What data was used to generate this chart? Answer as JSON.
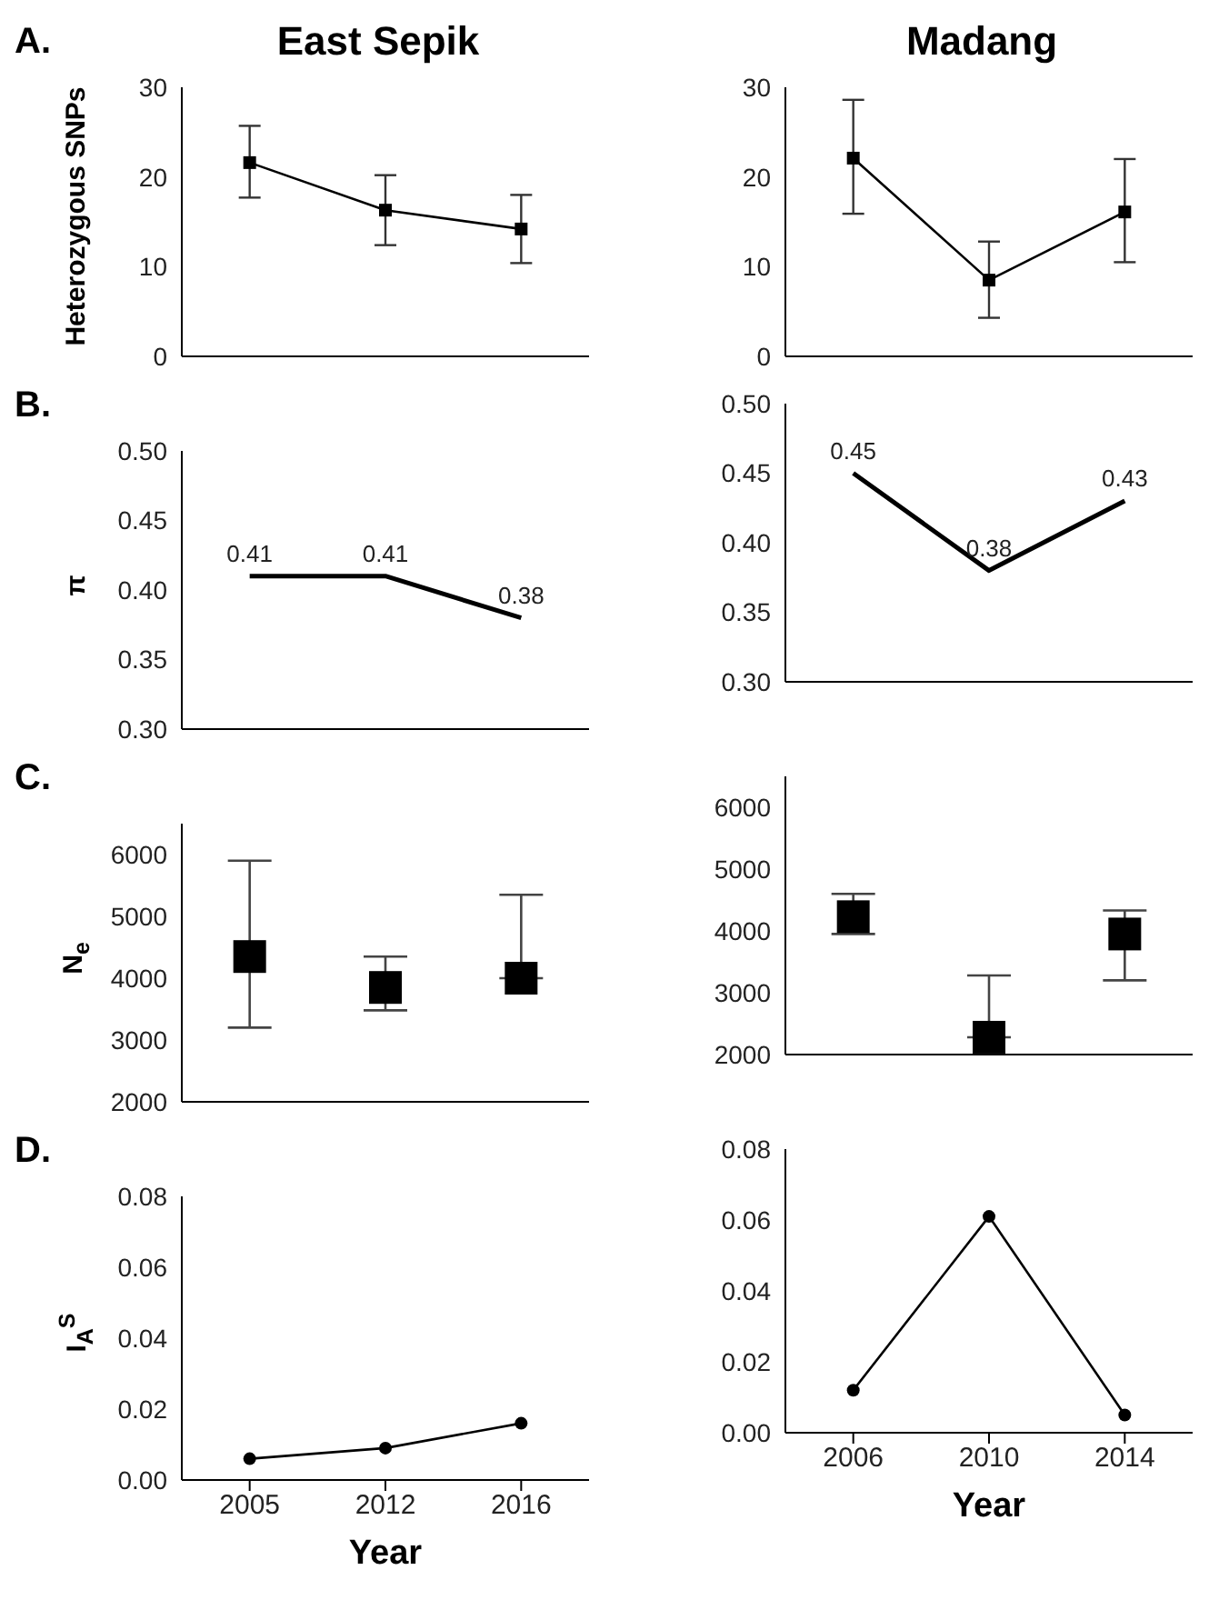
{
  "chart_data": [
    {
      "type": "line",
      "title": "East Sepik",
      "ylabel": "Heterozygous SNPs",
      "annotations": [
        "A."
      ],
      "categories": [
        null,
        null,
        null
      ],
      "ylim": [
        0,
        30
      ],
      "yticks": [
        0,
        10,
        20,
        30
      ],
      "tick_labels": "y",
      "marker": "square",
      "line_style": "solid",
      "series": [
        {
          "color": "#000000",
          "values": [
            21.6,
            16.3,
            14.2
          ],
          "errors": [
            [
              17.7,
              25.7
            ],
            [
              12.4,
              20.2
            ],
            [
              10.4,
              18.0
            ]
          ]
        }
      ]
    },
    {
      "type": "line",
      "title": "Madang",
      "categories": [
        null,
        null,
        null
      ],
      "ylim": [
        0,
        30
      ],
      "yticks": [
        0,
        10,
        20,
        30
      ],
      "tick_labels": "y",
      "marker": "square",
      "line_style": "solid",
      "series": [
        {
          "color": "#000000",
          "values": [
            22.1,
            8.5,
            16.1
          ],
          "errors": [
            [
              15.9,
              28.6
            ],
            [
              4.3,
              12.8
            ],
            [
              10.5,
              22.0
            ]
          ]
        }
      ]
    },
    {
      "type": "line",
      "ylabel": "π",
      "annotations": [
        "B."
      ],
      "categories": [
        null,
        null,
        null
      ],
      "ylim": [
        0.3,
        0.5
      ],
      "yticks": [
        {
          "value": 0.3,
          "label": "0.30"
        },
        {
          "value": 0.35,
          "label": "0.35"
        },
        {
          "value": 0.4,
          "label": "0.40"
        },
        {
          "value": 0.45,
          "label": "0.45"
        },
        {
          "value": 0.5,
          "label": "0.50"
        }
      ],
      "tick_labels": "y",
      "marker": "none",
      "line_style": "solid",
      "data_labels": true,
      "series": [
        {
          "color": "#000000",
          "values": [
            0.41,
            0.41,
            0.38
          ]
        }
      ]
    },
    {
      "type": "line",
      "categories": [
        null,
        null,
        null
      ],
      "ylim": [
        0.3,
        0.5
      ],
      "yticks": [
        {
          "value": 0.3,
          "label": "0.30"
        },
        {
          "value": 0.35,
          "label": "0.35"
        },
        {
          "value": 0.4,
          "label": "0.40"
        },
        {
          "value": 0.45,
          "label": "0.45"
        },
        {
          "value": 0.5,
          "label": "0.50"
        }
      ],
      "tick_labels": "y",
      "marker": "none",
      "line_style": "solid",
      "data_labels": true,
      "series": [
        {
          "color": "#000000",
          "values": [
            0.45,
            0.38,
            0.43
          ]
        }
      ]
    },
    {
      "type": "scatter",
      "ylabel": "N$_{e}$",
      "annotations": [
        "C."
      ],
      "categories": [
        null,
        null,
        null
      ],
      "ylim": [
        2000,
        6500
      ],
      "yticks": [
        2000,
        3000,
        4000,
        5000,
        6000
      ],
      "tick_labels": "y",
      "marker": "square",
      "series": [
        {
          "color": "#000000",
          "values": [
            4350,
            3850,
            4000
          ],
          "errors": [
            [
              3200,
              5900
            ],
            [
              3480,
              4350
            ],
            [
              4000,
              5350
            ]
          ]
        }
      ]
    },
    {
      "type": "scatter",
      "categories": [
        null,
        null,
        null
      ],
      "ylim": [
        2000,
        6500
      ],
      "yticks": [
        2000,
        3000,
        4000,
        5000,
        6000
      ],
      "tick_labels": "y",
      "marker": "square",
      "series": [
        {
          "color": "#000000",
          "values": [
            4230,
            2280,
            3950
          ],
          "errors": [
            [
              3950,
              4600
            ],
            [
              2280,
              3280
            ],
            [
              3200,
              4330
            ]
          ]
        }
      ]
    },
    {
      "type": "line",
      "ylabel": "I$_{A}$$^{S}$",
      "xlabel": "Year",
      "annotations": [
        "D."
      ],
      "categories": [
        "2005",
        "2012",
        "2016"
      ],
      "ylim": [
        0,
        0.08
      ],
      "yticks": [
        {
          "value": 0,
          "label": "0.00"
        },
        {
          "value": 0.02,
          "label": "0.02"
        },
        {
          "value": 0.04,
          "label": "0.04"
        },
        {
          "value": 0.06,
          "label": "0.06"
        },
        {
          "value": 0.08,
          "label": "0.08"
        }
      ],
      "marker": "circle",
      "line_style": "solid",
      "series": [
        {
          "color": "#000000",
          "values": [
            0.006,
            0.009,
            0.016
          ]
        }
      ]
    },
    {
      "type": "line",
      "xlabel": "Year",
      "categories": [
        "2006",
        "2010",
        "2014"
      ],
      "ylim": [
        0,
        0.08
      ],
      "yticks": [
        {
          "value": 0,
          "label": "0.00"
        },
        {
          "value": 0.02,
          "label": "0.02"
        },
        {
          "value": 0.04,
          "label": "0.04"
        },
        {
          "value": 0.06,
          "label": "0.06"
        },
        {
          "value": 0.08,
          "label": "0.08"
        }
      ],
      "marker": "circle",
      "line_style": "solid",
      "series": [
        {
          "color": "#000000",
          "values": [
            0.012,
            0.061,
            0.005
          ]
        }
      ]
    }
  ]
}
